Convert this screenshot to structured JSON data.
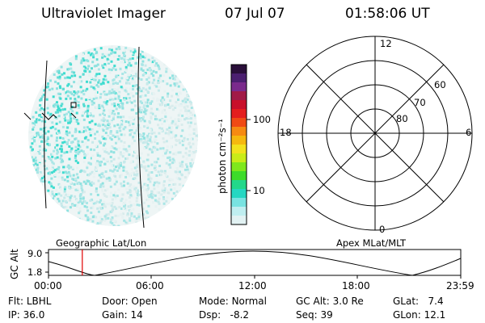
{
  "header": {
    "instrument": "Ultraviolet Imager",
    "date": "07 Jul 07",
    "time": "01:58:06 UT"
  },
  "colorbar": {
    "unit_label": "photon cm⁻²s⁻¹",
    "tick_labels": [
      "100",
      "10"
    ],
    "colors": [
      "#2a0f3a",
      "#4b1f70",
      "#7a2a8c",
      "#a11a47",
      "#c8102a",
      "#e41e1e",
      "#f04a14",
      "#f68a12",
      "#f5b80f",
      "#f2e21d",
      "#c9ec18",
      "#7fe81c",
      "#3ddb2a",
      "#22d88a",
      "#25d7c2",
      "#78e3e1",
      "#bfeef0",
      "#e2f2f3"
    ]
  },
  "polar": {
    "mlt_labels": {
      "top": "12",
      "left": "18",
      "right": "6",
      "bottom": "0"
    },
    "lat_labels": [
      "60",
      "70",
      "80"
    ]
  },
  "panels": {
    "left_label": "Geographic Lat/Lon",
    "right_label": "Apex MLat/MLT"
  },
  "orbit": {
    "y_axis_label": "GC Alt",
    "y_ticks": [
      "9.0",
      "1.8"
    ],
    "x_ticks": [
      "00:00",
      "06:00",
      "12:00",
      "18:00",
      "23:59"
    ],
    "current_time_fraction": 0.082
  },
  "footer": {
    "row1": [
      {
        "label": "Flt:",
        "value": "LBHL"
      },
      {
        "label": "Door:",
        "value": "Open"
      },
      {
        "label": "Mode:",
        "value": "Normal"
      },
      {
        "label": "GC Alt:",
        "value": "3.0 Re"
      },
      {
        "label": "GLat:",
        "value": "7.4"
      }
    ],
    "row2": [
      {
        "label": "IP:",
        "value": "36.0"
      },
      {
        "label": "Gain:",
        "value": "14"
      },
      {
        "label": "Dsp:",
        "value": "-8.2"
      },
      {
        "label": "Seq:",
        "value": "39"
      },
      {
        "label": "GLon:",
        "value": "12.1"
      }
    ]
  },
  "styles": {
    "accent_line": "#e00000",
    "text": "#000000",
    "speckle_light": "#d9ecec",
    "speckle_cyan": "#3fdcd0"
  }
}
